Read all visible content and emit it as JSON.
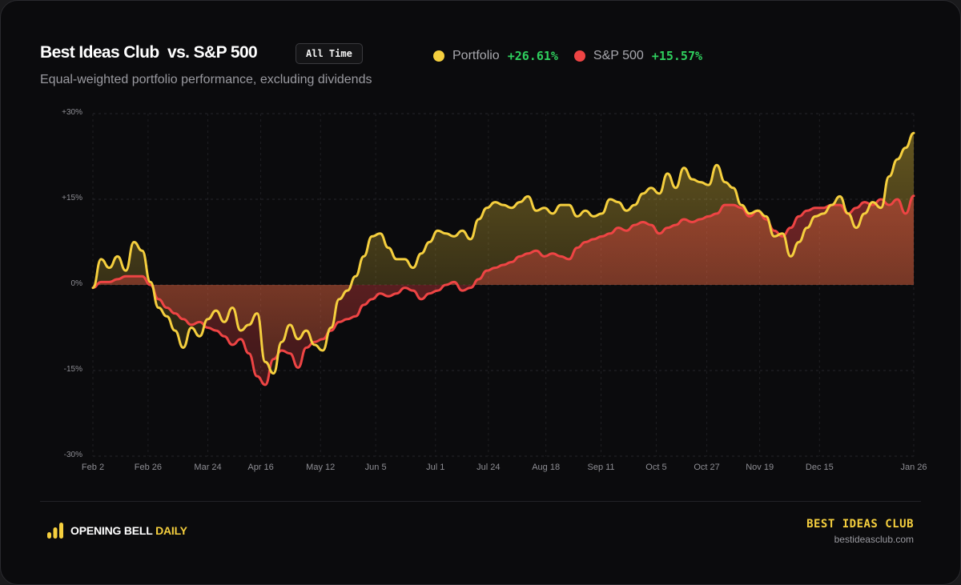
{
  "header": {
    "title": "Best Ideas Club  vs. S&P 500",
    "period_badge": "All Time",
    "subtitle": "Equal-weighted portfolio performance, excluding dividends"
  },
  "legend": [
    {
      "label": "Portfolio",
      "value": "+26.61%",
      "color": "#f5cf3e"
    },
    {
      "label": "S&P 500",
      "value": "+15.57%",
      "color": "#ee4444"
    }
  ],
  "footer": {
    "brand_name": "OPENING BELL",
    "brand_accent": "DAILY",
    "club_name": "BEST IDEAS CLUB",
    "club_url": "bestideasclub.com"
  },
  "colors": {
    "portfolio": "#f5cf3e",
    "sp500": "#ee4444",
    "positive": "#2fcf5e",
    "background": "#0b0b0d"
  },
  "chart_data": {
    "type": "line",
    "title": "Best Ideas Club vs. S&P 500",
    "subtitle": "Equal-weighted portfolio performance, excluding dividends",
    "xlabel": "",
    "ylabel": "",
    "ylim": [
      -30,
      30
    ],
    "yticks": [
      "+30%",
      "+15%",
      "0%",
      "-15%",
      "-30%"
    ],
    "ytick_values": [
      30,
      15,
      0,
      -15,
      -30
    ],
    "xticks": [
      "Feb 2",
      "Feb 26",
      "Mar 24",
      "Apr 16",
      "May 12",
      "Jun 5",
      "Jul 1",
      "Jul 24",
      "Aug 18",
      "Sep 11",
      "Oct 5",
      "Oct 27",
      "Nov 19",
      "Dec 15",
      "Jan 26"
    ],
    "xtick_positions": [
      0,
      0.0956,
      0.1992,
      0.2908,
      0.3944,
      0.49,
      0.5936,
      0.6853,
      0.7849,
      0.8805,
      0.9761,
      1.0637,
      1.1554,
      1.259,
      1.4223
    ],
    "grid": true,
    "legend_position": "top",
    "fill": "area-to-zero",
    "x": [
      0,
      0.01,
      0.02,
      0.03,
      0.04,
      0.05,
      0.06,
      0.07,
      0.08,
      0.09,
      0.1,
      0.11,
      0.12,
      0.13,
      0.14,
      0.15,
      0.16,
      0.17,
      0.18,
      0.19,
      0.2,
      0.21,
      0.22,
      0.23,
      0.24,
      0.25,
      0.26,
      0.27,
      0.28,
      0.29,
      0.3,
      0.31,
      0.32,
      0.33,
      0.34,
      0.35,
      0.36,
      0.37,
      0.38,
      0.39,
      0.4,
      0.41,
      0.42,
      0.43,
      0.44,
      0.45,
      0.46,
      0.47,
      0.48,
      0.49,
      0.5,
      0.51,
      0.52,
      0.53,
      0.54,
      0.55,
      0.56,
      0.57,
      0.58,
      0.59,
      0.6,
      0.61,
      0.62,
      0.63,
      0.64,
      0.65,
      0.66,
      0.67,
      0.68,
      0.69,
      0.7,
      0.71,
      0.72,
      0.73,
      0.74,
      0.75,
      0.76,
      0.77,
      0.78,
      0.79,
      0.8,
      0.81,
      0.82,
      0.83,
      0.84,
      0.85,
      0.86,
      0.87,
      0.88,
      0.89,
      0.9,
      0.91,
      0.92,
      0.93,
      0.94,
      0.95,
      0.96,
      0.97,
      0.98,
      0.99,
      1.0
    ],
    "series": [
      {
        "name": "Portfolio",
        "color": "#f5cf3e",
        "final": 26.61,
        "values": [
          -0.5,
          4.5,
          3.0,
          5.0,
          2.5,
          7.5,
          6.0,
          0.5,
          -4.0,
          -5.5,
          -8.0,
          -11.0,
          -7.5,
          -9.0,
          -6.0,
          -4.5,
          -6.5,
          -4.0,
          -8.0,
          -7.0,
          -5.0,
          -13.5,
          -15.5,
          -10.0,
          -7.0,
          -9.5,
          -8.0,
          -10.5,
          -11.5,
          -7.5,
          -2.5,
          -1.0,
          1.5,
          5.0,
          8.5,
          9.0,
          6.5,
          4.5,
          4.5,
          3.0,
          5.5,
          7.5,
          9.5,
          9.0,
          8.5,
          9.5,
          8.0,
          11.5,
          13.5,
          14.5,
          14.0,
          13.5,
          14.5,
          15.5,
          13.0,
          13.5,
          12.5,
          14.0,
          14.0,
          12.0,
          13.0,
          12.0,
          12.5,
          15.0,
          14.5,
          13.0,
          14.0,
          16.0,
          17.0,
          16.0,
          19.5,
          17.0,
          20.5,
          18.5,
          18.0,
          17.5,
          21.0,
          18.0,
          17.0,
          14.0,
          12.5,
          13.0,
          12.0,
          8.5,
          9.0,
          5.0,
          7.5,
          10.0,
          12.0,
          12.5,
          14.0,
          15.5,
          12.5,
          10.0,
          12.5,
          14.5,
          13.5,
          19.0,
          22.0,
          24.0,
          26.6
        ]
      },
      {
        "name": "S&P 500",
        "color": "#ee4444",
        "final": 15.57,
        "values": [
          -0.5,
          0.5,
          0.5,
          1.0,
          1.5,
          1.5,
          1.5,
          0.0,
          -2.5,
          -4.0,
          -5.0,
          -6.0,
          -7.0,
          -6.5,
          -7.5,
          -8.0,
          -9.0,
          -10.5,
          -9.5,
          -12.0,
          -16.0,
          -17.5,
          -13.0,
          -11.5,
          -12.0,
          -14.5,
          -11.0,
          -10.0,
          -9.5,
          -8.0,
          -6.5,
          -6.0,
          -5.5,
          -3.5,
          -2.5,
          -1.5,
          -2.0,
          -1.5,
          -0.5,
          -1.0,
          -2.5,
          -1.5,
          -1.0,
          0.0,
          0.5,
          -1.0,
          -0.5,
          1.0,
          2.5,
          3.0,
          3.5,
          4.0,
          5.0,
          5.5,
          6.0,
          5.0,
          5.5,
          5.0,
          4.5,
          6.5,
          7.5,
          8.0,
          8.5,
          9.0,
          10.0,
          9.5,
          10.5,
          11.0,
          10.5,
          9.0,
          10.0,
          10.5,
          11.5,
          11.0,
          11.5,
          12.0,
          12.5,
          14.0,
          14.0,
          13.5,
          12.0,
          13.0,
          11.5,
          9.5,
          8.5,
          10.0,
          12.0,
          13.0,
          13.5,
          13.5,
          14.0,
          14.0,
          12.5,
          13.5,
          14.5,
          14.0,
          15.0,
          14.0,
          15.0,
          12.5,
          15.6
        ]
      }
    ]
  }
}
